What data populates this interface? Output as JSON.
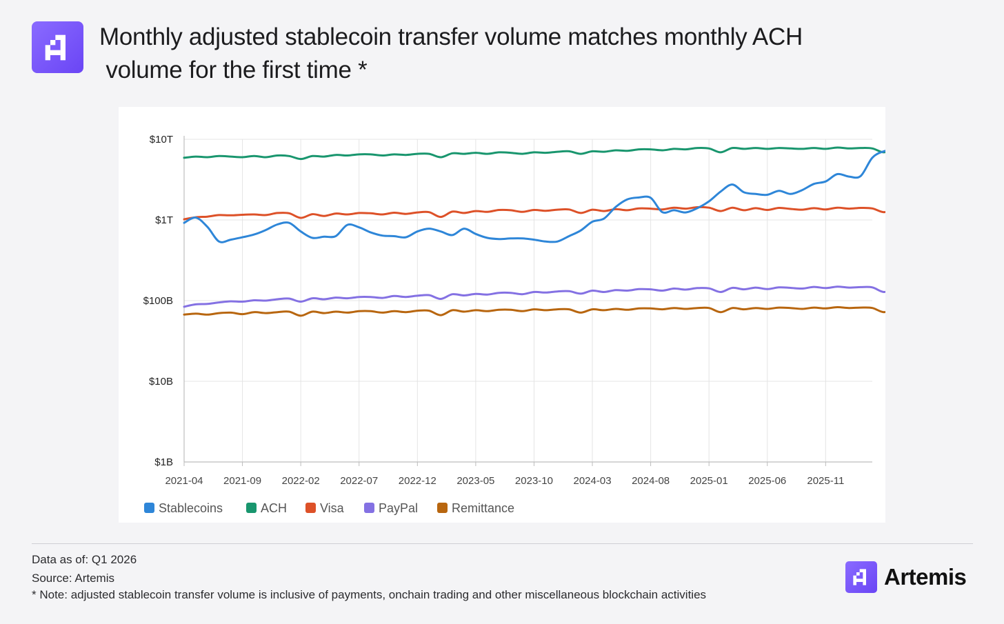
{
  "header": {
    "title_line1": "Monthly adjusted stablecoin transfer volume matches monthly ACH",
    "title_line2": " volume for the first time *",
    "logo_icon": "artemis-logo-icon"
  },
  "colors": {
    "brand_purple": "#6f4cf6",
    "stablecoins": "#2e86d8",
    "ach": "#19966e",
    "visa": "#dd5128",
    "paypal": "#8471e3",
    "remittance": "#b8660f",
    "grid": "#e4e4e4"
  },
  "chart_data": {
    "type": "line",
    "yscale": "log",
    "title": "",
    "xlabel": "",
    "ylabel": "",
    "ylim": [
      1000000000,
      10000000000000
    ],
    "y_ticks": [
      {
        "value": 1000000000,
        "label": "$1B"
      },
      {
        "value": 10000000000,
        "label": "$10B"
      },
      {
        "value": 100000000000,
        "label": "$100B"
      },
      {
        "value": 1000000000000,
        "label": "$1T"
      },
      {
        "value": 10000000000000,
        "label": "$10T"
      }
    ],
    "x_ticks": [
      "2021-04",
      "2021-09",
      "2022-02",
      "2022-07",
      "2022-12",
      "2023-05",
      "2023-10",
      "2024-03",
      "2024-08",
      "2025-01",
      "2025-06",
      "2025-11"
    ],
    "x_start": "2021-04",
    "x_end": "2026-03",
    "legend_position": "bottom-left",
    "series": [
      {
        "name": "Stablecoins",
        "color": "#2e86d8",
        "unit": "T",
        "values": [
          0.92,
          1.07,
          0.82,
          0.54,
          0.57,
          0.61,
          0.66,
          0.75,
          0.88,
          0.92,
          0.72,
          0.6,
          0.62,
          0.63,
          0.87,
          0.81,
          0.7,
          0.64,
          0.63,
          0.61,
          0.72,
          0.78,
          0.72,
          0.65,
          0.78,
          0.67,
          0.6,
          0.58,
          0.59,
          0.59,
          0.57,
          0.54,
          0.54,
          0.63,
          0.74,
          0.95,
          1.04,
          1.45,
          1.8,
          1.9,
          1.88,
          1.25,
          1.32,
          1.24,
          1.4,
          1.7,
          2.25,
          2.75,
          2.2,
          2.1,
          2.05,
          2.3,
          2.1,
          2.35,
          2.8,
          3.0,
          3.7,
          3.45,
          3.5,
          5.9,
          7.1,
          7.5
        ]
      },
      {
        "name": "ACH",
        "color": "#19966e",
        "unit": "T",
        "values": [
          5.9,
          6.1,
          6.0,
          6.2,
          6.1,
          6.0,
          6.2,
          6.0,
          6.3,
          6.2,
          5.7,
          6.2,
          6.1,
          6.4,
          6.3,
          6.5,
          6.5,
          6.3,
          6.5,
          6.4,
          6.6,
          6.6,
          6.0,
          6.7,
          6.6,
          6.8,
          6.6,
          6.9,
          6.8,
          6.6,
          6.9,
          6.8,
          7.0,
          7.1,
          6.6,
          7.1,
          7.0,
          7.3,
          7.2,
          7.5,
          7.5,
          7.3,
          7.6,
          7.5,
          7.8,
          7.7,
          6.9,
          7.8,
          7.6,
          7.8,
          7.6,
          7.8,
          7.7,
          7.6,
          7.8,
          7.6,
          7.9,
          7.7,
          7.8,
          7.7,
          6.9,
          7.8
        ]
      },
      {
        "name": "Visa",
        "color": "#dd5128",
        "unit": "T",
        "values": [
          1.02,
          1.08,
          1.1,
          1.15,
          1.14,
          1.16,
          1.17,
          1.15,
          1.22,
          1.21,
          1.06,
          1.18,
          1.12,
          1.2,
          1.17,
          1.22,
          1.21,
          1.17,
          1.23,
          1.19,
          1.24,
          1.25,
          1.09,
          1.27,
          1.22,
          1.29,
          1.26,
          1.33,
          1.32,
          1.26,
          1.33,
          1.3,
          1.34,
          1.35,
          1.22,
          1.34,
          1.29,
          1.36,
          1.32,
          1.39,
          1.38,
          1.35,
          1.42,
          1.38,
          1.44,
          1.42,
          1.29,
          1.42,
          1.32,
          1.4,
          1.33,
          1.41,
          1.37,
          1.34,
          1.4,
          1.35,
          1.42,
          1.38,
          1.41,
          1.39,
          1.25,
          1.4
        ]
      },
      {
        "name": "PayPal",
        "color": "#8471e3",
        "unit": "B",
        "values": [
          84,
          90,
          91,
          95,
          98,
          97,
          101,
          100,
          104,
          106,
          97,
          107,
          104,
          109,
          107,
          111,
          111,
          108,
          114,
          111,
          115,
          117,
          105,
          120,
          116,
          121,
          119,
          125,
          125,
          120,
          128,
          126,
          130,
          131,
          122,
          133,
          128,
          135,
          133,
          139,
          138,
          133,
          141,
          137,
          143,
          142,
          128,
          144,
          138,
          145,
          139,
          146,
          144,
          141,
          148,
          143,
          149,
          145,
          147,
          146,
          128,
          145
        ]
      },
      {
        "name": "Remittance",
        "color": "#b8660f",
        "unit": "B",
        "values": [
          67,
          69,
          67,
          70,
          71,
          68,
          72,
          70,
          72,
          73,
          65,
          73,
          70,
          73,
          71,
          74,
          74,
          71,
          74,
          72,
          75,
          75,
          66,
          76,
          73,
          76,
          74,
          77,
          77,
          74,
          78,
          76,
          78,
          78,
          71,
          78,
          76,
          79,
          77,
          80,
          80,
          78,
          81,
          79,
          81,
          81,
          72,
          81,
          78,
          81,
          79,
          82,
          81,
          79,
          82,
          80,
          83,
          81,
          82,
          81,
          72,
          81
        ]
      }
    ]
  },
  "footer": {
    "data_as_of": "Data as of: Q1 2026",
    "source": "Source: Artemis",
    "note": "* Note: adjusted stablecoin transfer volume is inclusive of payments, onchain trading and other miscellaneous blockchain activities",
    "brand_name": "Artemis",
    "brand_icon": "artemis-logo-icon"
  }
}
